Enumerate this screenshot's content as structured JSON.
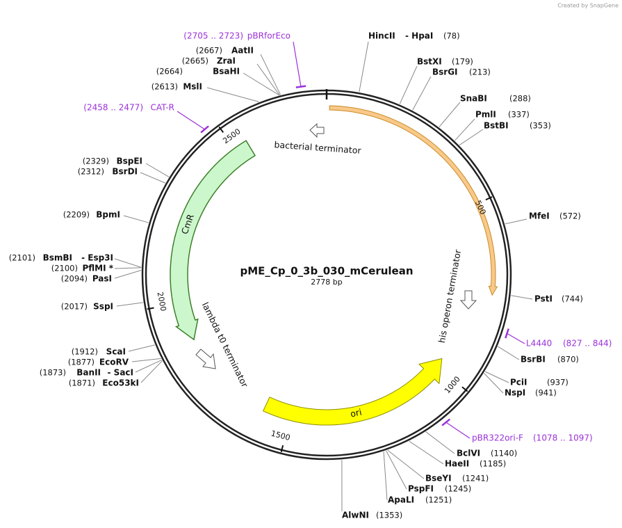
{
  "header": {
    "credit": "Created by SnapGene"
  },
  "map": {
    "name": "pME_Cp_0_3b_030_mCerulean",
    "length": {
      "value": 2778,
      "label": "2778 bp"
    },
    "ticks": [
      500,
      1000,
      1500,
      2000,
      2500
    ],
    "sites": [
      {
        "labels": [
          "HincII",
          "- HpaI",
          "(78)"
        ]
      },
      {
        "labels": [
          "BstXI",
          "(179)"
        ]
      },
      {
        "labels": [
          "BsrGI",
          "(213)"
        ]
      },
      {
        "labels": [
          "SnaBI",
          "(288)"
        ]
      },
      {
        "labels": [
          "PmlI",
          "(337)"
        ]
      },
      {
        "labels": [
          "BstBI",
          "(353)"
        ]
      },
      {
        "labels": [
          "MfeI",
          "(572)"
        ]
      },
      {
        "labels": [
          "PstI",
          "(744)"
        ]
      },
      {
        "labels": [
          "BsrBI",
          "(870)"
        ]
      },
      {
        "labels": [
          "PciI",
          "(937)"
        ]
      },
      {
        "labels": [
          "NspI",
          "(941)"
        ]
      },
      {
        "labels": [
          "BclVI",
          "(1140)"
        ]
      },
      {
        "labels": [
          "HaeII",
          "(1185)"
        ]
      },
      {
        "labels": [
          "BseYI",
          "(1241)"
        ]
      },
      {
        "labels": [
          "PspFI",
          "(1245)"
        ]
      },
      {
        "labels": [
          "ApaLI",
          "(1251)"
        ]
      },
      {
        "labels": [
          "AlwNI",
          "(1353)"
        ]
      },
      {
        "labels": [
          "(2667)",
          "AatII"
        ]
      },
      {
        "labels": [
          "(2665)",
          "ZraI"
        ]
      },
      {
        "labels": [
          "(2664)",
          "BsaHI"
        ]
      },
      {
        "labels": [
          "(2613)",
          "MslI"
        ]
      },
      {
        "labels": [
          "(2329)",
          "BspEI"
        ]
      },
      {
        "labels": [
          "(2312)",
          "BsrDI"
        ]
      },
      {
        "labels": [
          "(2209)",
          "BpmI"
        ]
      },
      {
        "labels": [
          "(2101)",
          "BsmBI",
          "- Esp3I"
        ]
      },
      {
        "labels": [
          "(2100)",
          "PflMI *"
        ]
      },
      {
        "labels": [
          "(2094)",
          "PasI"
        ]
      },
      {
        "labels": [
          "(2017)",
          "SspI"
        ]
      },
      {
        "labels": [
          "(1912)",
          "ScaI"
        ]
      },
      {
        "labels": [
          "(1877)",
          "EcoRV"
        ]
      },
      {
        "labels": [
          "(1873)",
          "BanII",
          "- SacI"
        ]
      },
      {
        "labels": [
          "(1871)",
          "Eco53kI"
        ]
      }
    ],
    "primers": [
      {
        "labels": [
          "(2705 .. 2723)",
          "pBRforEco"
        ]
      },
      {
        "labels": [
          "(2458 .. 2477)",
          "CAT-R"
        ]
      },
      {
        "labels": [
          "L4440",
          "(827 .. 844)"
        ]
      },
      {
        "labels": [
          "pBR322ori-F",
          "(1078 .. 1097)"
        ]
      }
    ],
    "features": [
      {
        "label": "bacterial terminator"
      },
      {
        "label": "his operon terminator"
      },
      {
        "label": "lambda t0 terminator"
      },
      {
        "label": "CmR"
      },
      {
        "label": "ori"
      }
    ]
  }
}
